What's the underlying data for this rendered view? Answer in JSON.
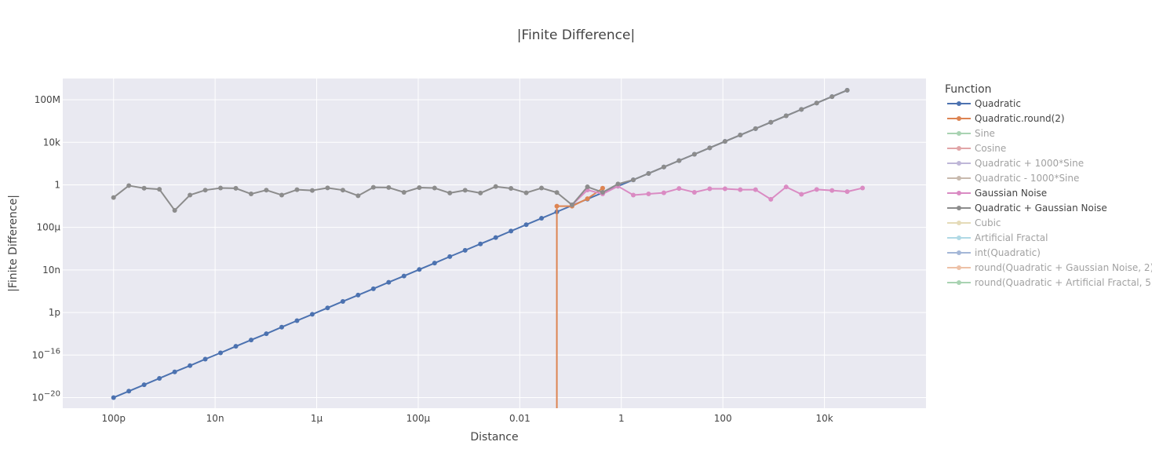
{
  "chart_data": {
    "type": "line",
    "title": "|Finite Difference|",
    "xlabel": "Distance",
    "ylabel": "|Finite Difference|",
    "x_scale": "log",
    "y_scale": "log",
    "xlim": [
      1e-11,
      1000000.0
    ],
    "ylim": [
      1e-21,
      10000000000.0
    ],
    "grid": true,
    "legend_title": "Function",
    "legend_position": "right",
    "x_ticks": [
      {
        "value": 1e-10,
        "label": "100p"
      },
      {
        "value": 1e-08,
        "label": "10n"
      },
      {
        "value": 1e-06,
        "label": "1μ"
      },
      {
        "value": 0.0001,
        "label": "100μ"
      },
      {
        "value": 0.01,
        "label": "0.01"
      },
      {
        "value": 1,
        "label": "1"
      },
      {
        "value": 100,
        "label": "100"
      },
      {
        "value": 10000,
        "label": "10k"
      }
    ],
    "y_ticks": [
      {
        "value": 100000000.0,
        "label": "100M"
      },
      {
        "value": 10000.0,
        "label": "10k"
      },
      {
        "value": 1,
        "label": "1"
      },
      {
        "value": 0.0001,
        "label": "100μ"
      },
      {
        "value": 1e-08,
        "label": "10n"
      },
      {
        "value": 1e-12,
        "label": "1p"
      },
      {
        "value": 1e-16,
        "label": "10",
        "exponent": "−16"
      },
      {
        "value": 1e-20,
        "label": "10",
        "exponent": "−20"
      }
    ],
    "series": [
      {
        "name": "Quadratic",
        "color": "#4c72b0",
        "visible": true,
        "points": [
          [
            1e-10,
            1e-20
          ],
          [
            2e-10,
            4e-20
          ],
          [
            4e-10,
            1.6e-19
          ],
          [
            8e-10,
            6.4e-19
          ],
          [
            1.6e-09,
            2.6e-18
          ],
          [
            3.2e-09,
            1e-17
          ],
          [
            6.4e-09,
            4.1e-17
          ],
          [
            1.28e-08,
            1.6e-16
          ],
          [
            2.56e-08,
            6.6e-16
          ],
          [
            5.12e-08,
            2.6e-15
          ],
          [
            1.02e-07,
            1e-14
          ],
          [
            2.05e-07,
            4.2e-14
          ],
          [
            4.1e-07,
            1.7e-13
          ],
          [
            8.19e-07,
            6.7e-13
          ],
          [
            1.64e-06,
            2.7e-12
          ],
          [
            3.28e-06,
            1.1e-11
          ],
          [
            6.55e-06,
            4.3e-11
          ],
          [
            1.31e-05,
            1.7e-10
          ],
          [
            2.62e-05,
            6.9e-10
          ],
          [
            5.24e-05,
            2.7e-09
          ],
          [
            0.000105,
            1.1e-08
          ],
          [
            0.00021,
            4.4e-08
          ],
          [
            0.000419,
            1.8e-07
          ],
          [
            0.000839,
            7e-07
          ],
          [
            0.00168,
            2.8e-06
          ],
          [
            0.00336,
            1.1e-05
          ],
          [
            0.00671,
            4.5e-05
          ],
          [
            0.0134,
            0.00018
          ],
          [
            0.0268,
            0.00072
          ],
          [
            0.0537,
            0.0029
          ],
          [
            0.107,
            0.0115
          ],
          [
            0.215,
            0.046
          ],
          [
            0.429,
            0.184
          ],
          [
            0.859,
            0.74
          ],
          [
            1.72,
            2.95
          ],
          [
            3.44,
            11.8
          ],
          [
            6.87,
            47.2
          ],
          [
            13.7,
            189
          ],
          [
            27.5,
            755
          ],
          [
            55,
            3020
          ],
          [
            110,
            12100
          ],
          [
            220,
            48300
          ],
          [
            440,
            193000
          ],
          [
            880,
            773000
          ],
          [
            1760,
            3100000.0
          ],
          [
            3520,
            12400000.0
          ],
          [
            7040,
            49500000.0
          ],
          [
            14100,
            198000000.0
          ],
          [
            28100,
            790000000.0
          ]
        ]
      },
      {
        "name": "Quadratic.round(2)",
        "color": "#dd8452",
        "visible": true,
        "points": [
          [
            0.0537,
            1e-21
          ],
          [
            0.0537,
            0.01
          ],
          [
            0.107,
            0.01
          ],
          [
            0.215,
            0.05
          ],
          [
            0.429,
            0.48
          ]
        ]
      },
      {
        "name": "Sine",
        "color": "#55a868",
        "visible": false,
        "points": []
      },
      {
        "name": "Cosine",
        "color": "#c44e52",
        "visible": false,
        "points": []
      },
      {
        "name": "Quadratic + 1000*Sine",
        "color": "#8172b3",
        "visible": false,
        "points": []
      },
      {
        "name": "Quadratic - 1000*Sine",
        "color": "#937860",
        "visible": false,
        "points": []
      },
      {
        "name": "Gaussian Noise",
        "color": "#da8bc3",
        "visible": true,
        "points": [
          [
            0.107,
            0.013
          ],
          [
            0.215,
            0.33
          ],
          [
            0.429,
            0.14
          ],
          [
            0.859,
            0.75
          ],
          [
            1.72,
            0.11
          ],
          [
            3.44,
            0.14
          ],
          [
            6.87,
            0.18
          ],
          [
            13.7,
            0.45
          ],
          [
            27.5,
            0.2
          ],
          [
            55,
            0.43
          ],
          [
            110,
            0.43
          ],
          [
            220,
            0.35
          ],
          [
            440,
            0.35
          ],
          [
            880,
            0.044
          ],
          [
            1760,
            0.64
          ],
          [
            3520,
            0.13
          ],
          [
            7040,
            0.37
          ],
          [
            14100,
            0.3
          ],
          [
            28100,
            0.23
          ],
          [
            56300,
            0.5
          ]
        ]
      },
      {
        "name": "Quadratic + Gaussian Noise",
        "color": "#8c8c8c",
        "visible": true,
        "points": [
          [
            1e-10,
            0.065
          ],
          [
            2e-10,
            0.85
          ],
          [
            4e-10,
            0.48
          ],
          [
            8e-10,
            0.38
          ],
          [
            1.6e-09,
            0.004
          ],
          [
            3.2e-09,
            0.11
          ],
          [
            6.4e-09,
            0.32
          ],
          [
            1.28e-08,
            0.5
          ],
          [
            2.56e-08,
            0.47
          ],
          [
            5.12e-08,
            0.14
          ],
          [
            1.02e-07,
            0.32
          ],
          [
            2.05e-07,
            0.11
          ],
          [
            4.1e-07,
            0.35
          ],
          [
            8.19e-07,
            0.3
          ],
          [
            1.64e-06,
            0.52
          ],
          [
            3.28e-06,
            0.32
          ],
          [
            6.55e-06,
            0.095
          ],
          [
            1.31e-05,
            0.59
          ],
          [
            2.62e-05,
            0.56
          ],
          [
            5.24e-05,
            0.2
          ],
          [
            0.000105,
            0.55
          ],
          [
            0.00021,
            0.5
          ],
          [
            0.000419,
            0.17
          ],
          [
            0.000839,
            0.31
          ],
          [
            0.00168,
            0.17
          ],
          [
            0.00336,
            0.69
          ],
          [
            0.00671,
            0.46
          ],
          [
            0.0134,
            0.18
          ],
          [
            0.0268,
            0.5
          ],
          [
            0.0537,
            0.19
          ],
          [
            0.107,
            0.013
          ],
          [
            0.215,
            0.65
          ],
          [
            0.429,
            0.2
          ],
          [
            0.859,
            1.2
          ],
          [
            1.72,
            2.95
          ],
          [
            3.44,
            11.8
          ],
          [
            6.87,
            47.2
          ],
          [
            13.7,
            189
          ],
          [
            27.5,
            755
          ],
          [
            55,
            3020
          ],
          [
            110,
            12100
          ],
          [
            220,
            48300
          ],
          [
            440,
            193000
          ],
          [
            880,
            773000
          ],
          [
            1760,
            3100000.0
          ],
          [
            3520,
            12400000.0
          ],
          [
            7040,
            49500000.0
          ],
          [
            14100,
            198000000.0
          ],
          [
            28100,
            790000000.0
          ]
        ]
      },
      {
        "name": "Cubic",
        "color": "#ccb974",
        "visible": false,
        "points": []
      },
      {
        "name": "Artificial Fractal",
        "color": "#64b5cd",
        "visible": false,
        "points": []
      },
      {
        "name": "int(Quadratic)",
        "color": "#4c72b0",
        "visible": false,
        "points": []
      },
      {
        "name": "round(Quadratic + Gaussian Noise, 2)",
        "color": "#dd8452",
        "visible": false,
        "points": []
      },
      {
        "name": "round(Quadratic + Artificial Fractal, 5)",
        "color": "#55a868",
        "visible": false,
        "points": []
      }
    ]
  }
}
